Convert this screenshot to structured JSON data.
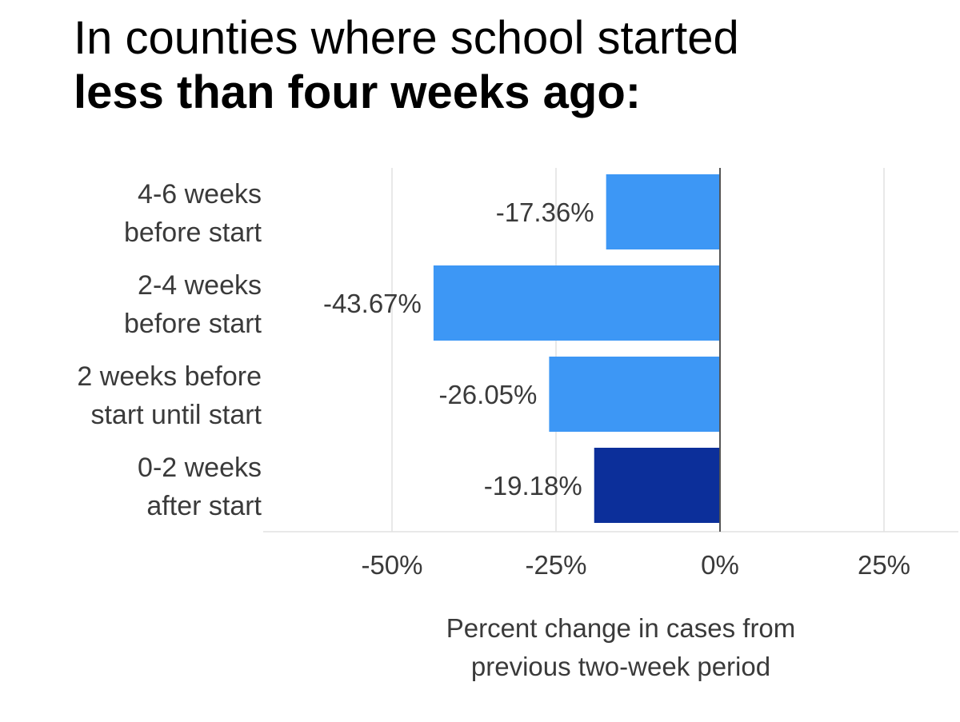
{
  "title": {
    "line1": "In counties where school started",
    "line2": "less than four weeks ago:"
  },
  "colors": {
    "bar": "#3d97f5",
    "highlight": "#0c2f9a",
    "grid": "#e2e2e2",
    "zero_line": "#555555",
    "text": "#3a3a3a"
  },
  "chart_data": {
    "type": "bar",
    "orientation": "horizontal",
    "categories": [
      [
        "4-6 weeks",
        "before start"
      ],
      [
        "2-4 weeks",
        "before start"
      ],
      [
        "2 weeks before",
        "start until start"
      ],
      [
        "0-2 weeks",
        "after start"
      ]
    ],
    "values": [
      -17.36,
      -43.67,
      -26.05,
      -19.18
    ],
    "value_labels": [
      "-17.36%",
      "-43.67%",
      "-26.05%",
      "-19.18%"
    ],
    "highlight_index": 3,
    "xlim": [
      -70,
      36
    ],
    "xticks": [
      -50,
      -25,
      0,
      25
    ],
    "xtick_labels": [
      "-50%",
      "-25%",
      "0%",
      "25%"
    ],
    "xlabel": [
      "Percent change in cases from",
      "previous two-week period"
    ],
    "grid": true
  }
}
